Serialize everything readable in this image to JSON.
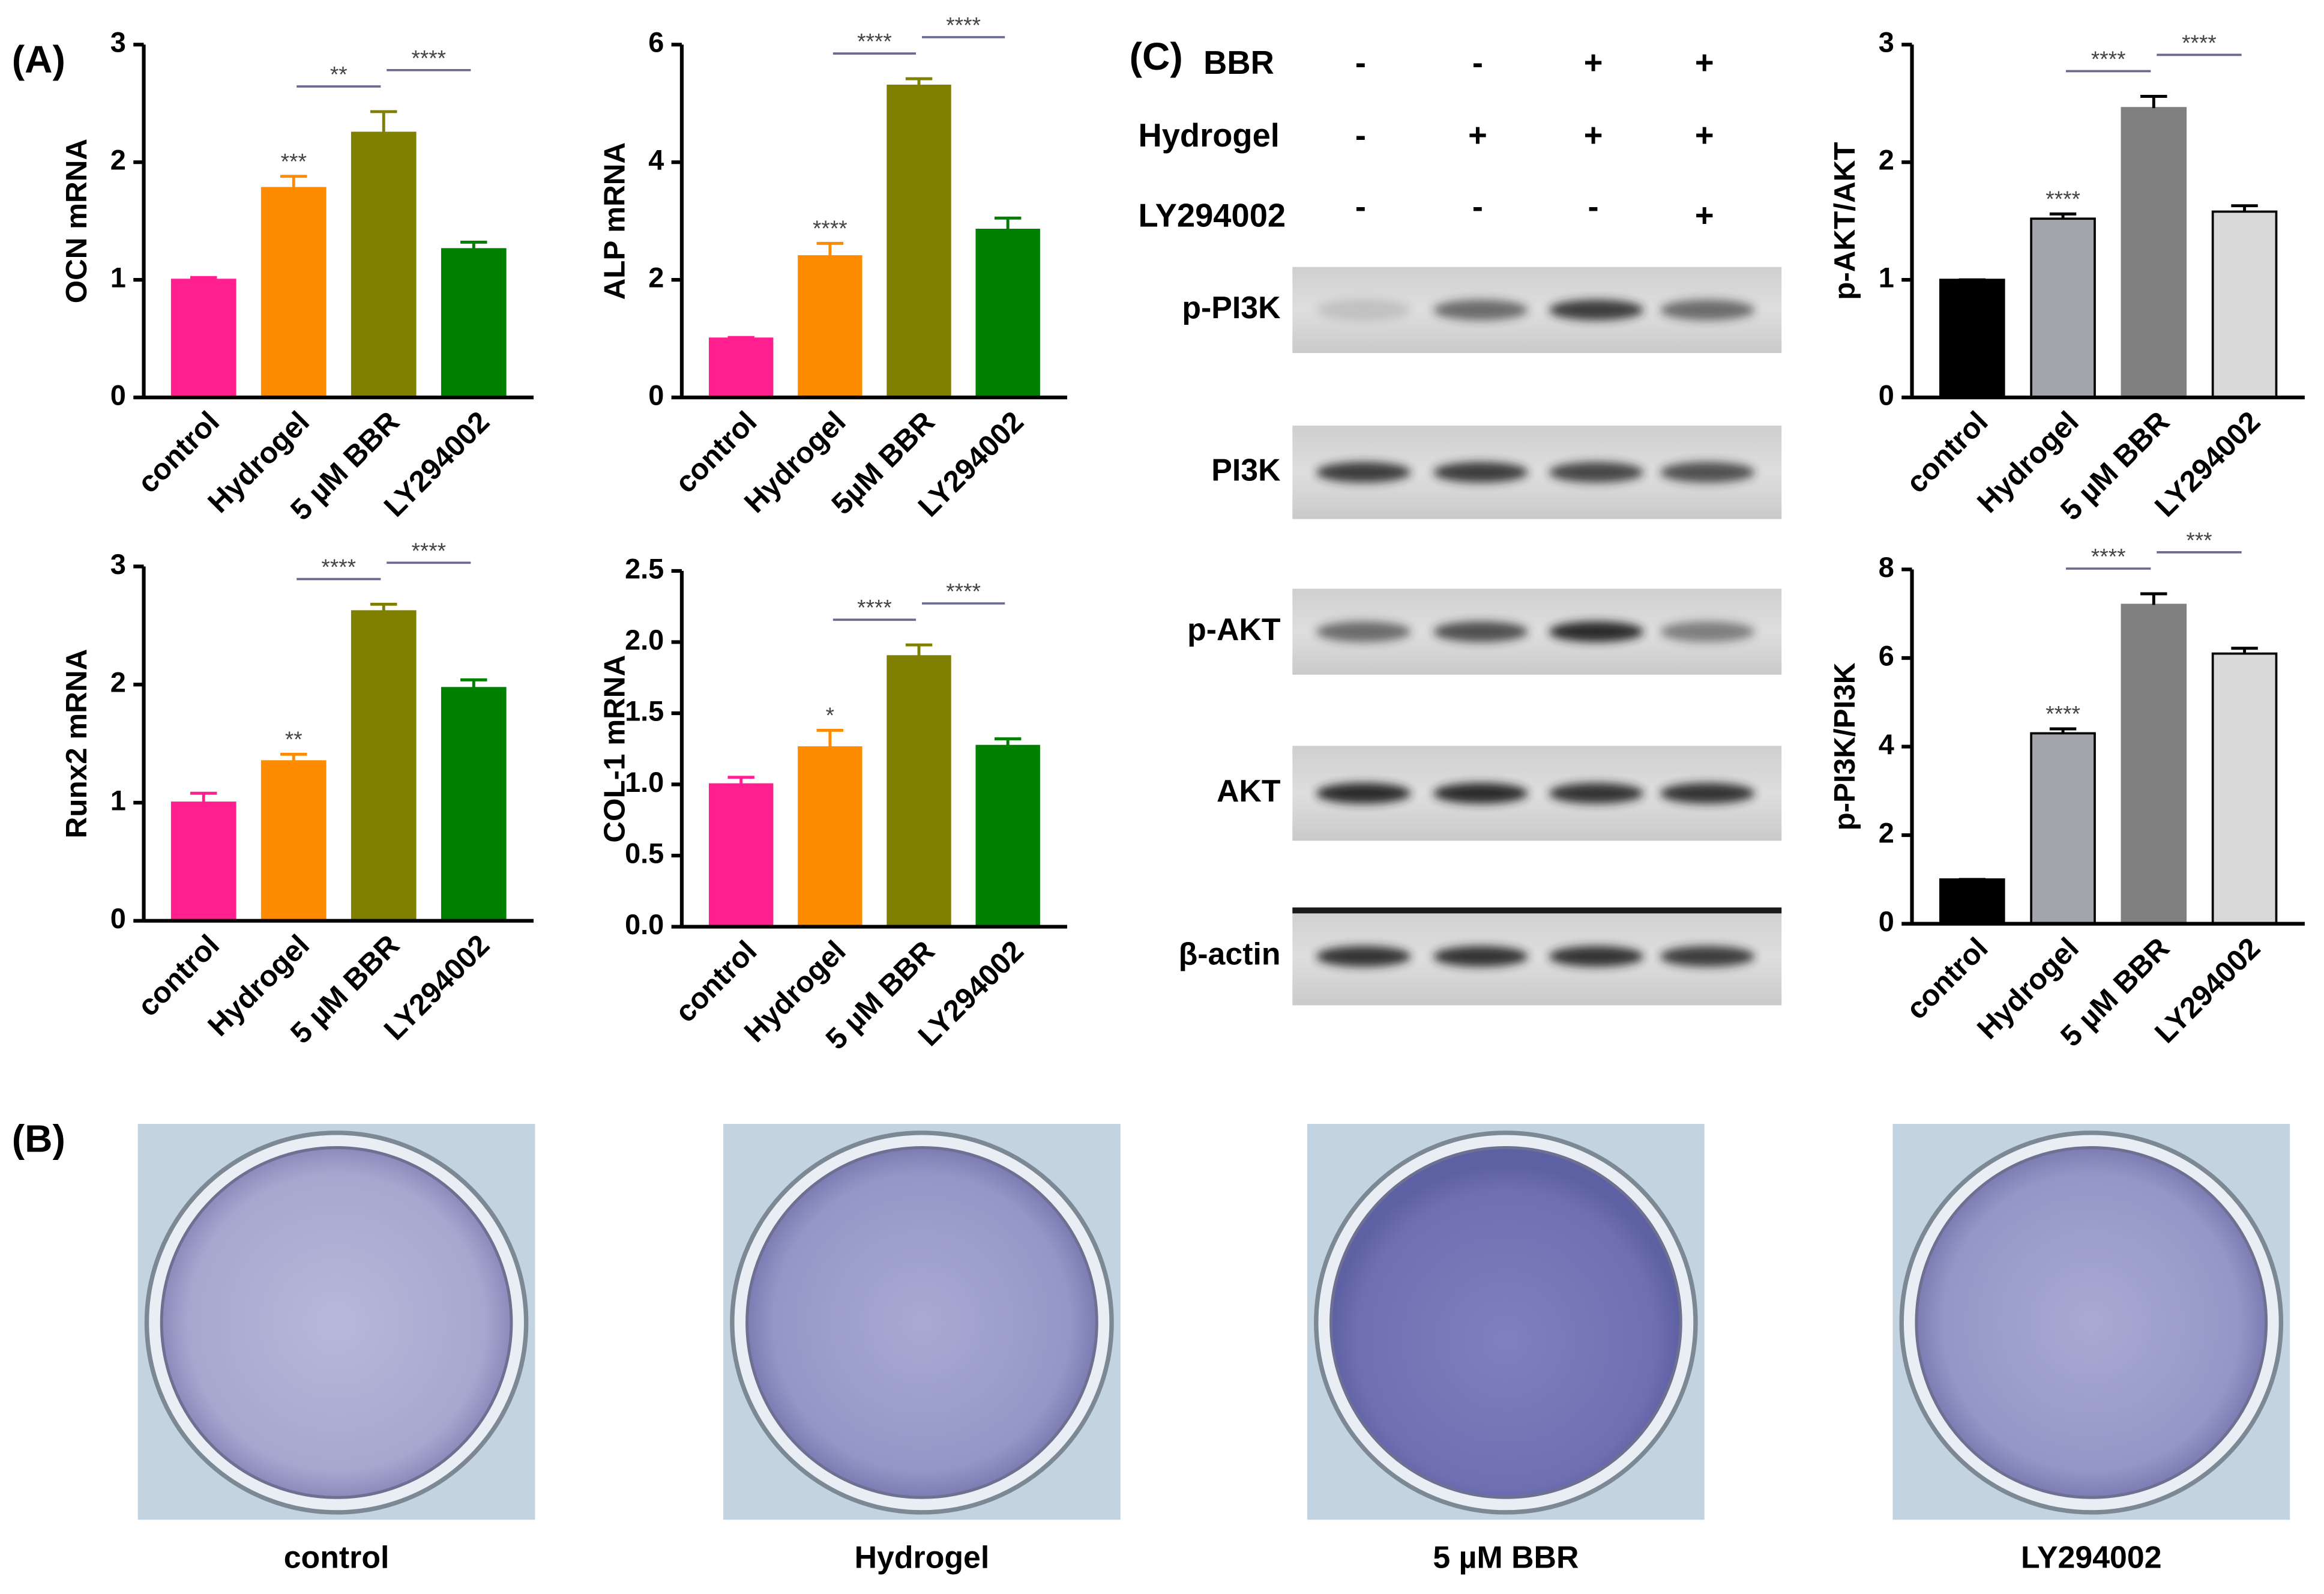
{
  "panel_labels": [
    "(A)",
    "(B)",
    "(C)"
  ],
  "chart_data": [
    {
      "type": "bar",
      "ylabel": "OCN mRNA",
      "categories": [
        "control",
        "Hydrogel",
        "5 µM BBR",
        "LY294002"
      ],
      "values": [
        1.0,
        1.78,
        2.25,
        1.26
      ],
      "errors": [
        0.02,
        0.1,
        0.18,
        0.06
      ],
      "colors": [
        "#ff1f8e",
        "#ff8c00",
        "#808000",
        "#008000"
      ],
      "ylim": [
        0,
        3
      ],
      "yticks": [
        0,
        1,
        2,
        3
      ],
      "value_annotations": [
        null,
        "***",
        null,
        null
      ],
      "bracket_labels": [
        "**",
        "****"
      ]
    },
    {
      "type": "bar",
      "ylabel": "ALP mRNA",
      "categories": [
        "control",
        "Hydrogel",
        "5µM BBR",
        "LY294002"
      ],
      "values": [
        1.0,
        2.4,
        5.3,
        2.85
      ],
      "errors": [
        0.02,
        0.22,
        0.12,
        0.2
      ],
      "colors": [
        "#ff1f8e",
        "#ff8c00",
        "#808000",
        "#008000"
      ],
      "ylim": [
        0,
        6
      ],
      "yticks": [
        0,
        2,
        4,
        6
      ],
      "value_annotations": [
        null,
        "****",
        null,
        null
      ],
      "bracket_labels": [
        "****",
        "****"
      ]
    },
    {
      "type": "bar",
      "ylabel": "Runx2 mRNA",
      "categories": [
        "control",
        "Hydrogel",
        "5 µM BBR",
        "LY294002"
      ],
      "values": [
        1.0,
        1.35,
        2.62,
        1.97
      ],
      "errors": [
        0.08,
        0.06,
        0.06,
        0.07
      ],
      "colors": [
        "#ff1f8e",
        "#ff8c00",
        "#808000",
        "#008000"
      ],
      "ylim": [
        0,
        3
      ],
      "yticks": [
        0,
        1,
        2,
        3
      ],
      "value_annotations": [
        null,
        "**",
        null,
        null
      ],
      "bracket_labels": [
        "****",
        "****"
      ]
    },
    {
      "type": "bar",
      "ylabel": "COL-1 mRNA",
      "categories": [
        "control",
        "Hydrogel",
        "5 µM BBR",
        "LY294002"
      ],
      "values": [
        1.0,
        1.26,
        1.9,
        1.27
      ],
      "errors": [
        0.05,
        0.12,
        0.08,
        0.05
      ],
      "colors": [
        "#ff1f8e",
        "#ff8c00",
        "#808000",
        "#008000"
      ],
      "ylim": [
        0,
        2.5
      ],
      "yticks": [
        {
          "value": 0,
          "label": "0.0"
        },
        0.5,
        {
          "value": 1,
          "label": "1.0"
        },
        1.5,
        {
          "value": 2,
          "label": "2.0"
        },
        2.5
      ],
      "value_annotations": [
        null,
        "*",
        null,
        null
      ],
      "bracket_labels": [
        "****",
        "****"
      ]
    },
    {
      "type": "bar",
      "ylabel": "p-AKT/AKT",
      "categories": [
        "control",
        "Hydrogel",
        "5 µM BBR",
        "LY294002"
      ],
      "values": [
        1.0,
        1.52,
        2.46,
        1.58
      ],
      "errors": [
        0,
        0.04,
        0.1,
        0.05
      ],
      "colors": [
        "#000000",
        "#a4a4ac",
        "#808080",
        "#d9d9d9"
      ],
      "ylim": [
        0,
        3
      ],
      "yticks": [
        0,
        1,
        2,
        3
      ],
      "value_annotations": [
        null,
        "****",
        null,
        null
      ],
      "bracket_labels": [
        "****",
        "****"
      ]
    },
    {
      "type": "bar",
      "ylabel": "p-PI3K/PI3K",
      "categories": [
        "control",
        "Hydrogel",
        "5 µM BBR",
        "LY294002"
      ],
      "values": [
        1.0,
        4.3,
        7.2,
        6.1
      ],
      "errors": [
        0,
        0.1,
        0.25,
        0.12
      ],
      "colors": [
        "#000000",
        "#a4a4ac",
        "#808080",
        "#d9d9d9"
      ],
      "ylim": [
        0,
        8
      ],
      "yticks": [
        0,
        2,
        4,
        6,
        8
      ],
      "value_annotations": [
        null,
        "****",
        null,
        null
      ],
      "bracket_labels": [
        "****",
        "***"
      ]
    }
  ],
  "treatment_table": {
    "rows": [
      {
        "label": "BBR",
        "signs": [
          "-",
          "-",
          "+",
          "+"
        ]
      },
      {
        "label": "Hydrogel",
        "signs": [
          "-",
          "+",
          "+",
          "+"
        ]
      },
      {
        "label": "LY294002",
        "signs": [
          "-",
          "-",
          "-",
          "+"
        ]
      }
    ]
  },
  "blot_labels": [
    "p-PI3K",
    "PI3K",
    "p-AKT",
    "AKT",
    "β-actin"
  ],
  "dish_captions": [
    "control",
    "Hydrogel",
    "5 µM BBR",
    "LY294002"
  ]
}
